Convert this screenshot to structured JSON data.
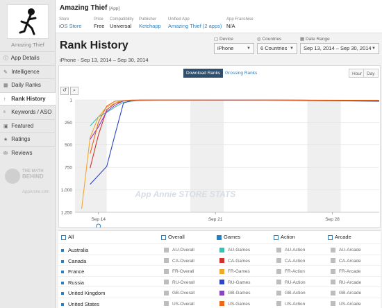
{
  "sidebar": {
    "app_name": "Amazing Thief",
    "items": [
      {
        "label": "App Details",
        "icon": "info-icon"
      },
      {
        "label": "Intelligence",
        "icon": "pencil-icon"
      },
      {
        "label": "Daily Ranks",
        "icon": "calendar-icon"
      },
      {
        "label": "Rank History",
        "icon": "arrow-up-icon"
      },
      {
        "label": "Keywords / ASO",
        "icon": "keyword-icon"
      },
      {
        "label": "Featured",
        "icon": "featured-icon"
      },
      {
        "label": "Ratings",
        "icon": "star-icon"
      },
      {
        "label": "Reviews",
        "icon": "reviews-icon"
      }
    ],
    "active_index": 3
  },
  "header": {
    "title": "Amazing Thief",
    "title_tag": "[App]",
    "meta": [
      {
        "label": "Store",
        "value": "iOS Store",
        "link": true
      },
      {
        "label": "Price",
        "value": "Free",
        "link": false
      },
      {
        "label": "Compatibility",
        "value": "Universal",
        "link": false
      },
      {
        "label": "Publisher",
        "value": "Ketchapp",
        "link": true
      },
      {
        "label": "Unified App",
        "value": "Amazing Thief (2 apps)",
        "link": true
      },
      {
        "label": "App Franchise",
        "value": "N/A",
        "link": false
      }
    ]
  },
  "page": {
    "title": "Rank History",
    "subtitle": "iPhone - Sep 13, 2014 – Sep 30, 2014"
  },
  "controls": {
    "device": {
      "label": "Device",
      "value": "iPhone"
    },
    "countries": {
      "label": "Countries",
      "value": "6 Countries"
    },
    "date_range": {
      "label": "Date Range",
      "value": "Sep 13, 2014 – Sep 30, 2014"
    }
  },
  "chart_toolbar": {
    "download": "Download Ranks",
    "grossing": "Grossing Ranks",
    "hour": "Hour",
    "day": "Day",
    "reset": "↺",
    "zoom": "⌕"
  },
  "chart_data": {
    "type": "line",
    "ylim": [
      1,
      1200
    ],
    "yticks": [
      {
        "v": 1,
        "label": "1"
      },
      {
        "v": 250,
        "label": "250"
      },
      {
        "v": 500,
        "label": "500"
      },
      {
        "v": 750,
        "label": "750"
      },
      {
        "v": 1000,
        "label": "1,000"
      },
      {
        "v": 1250,
        "label": "1,250"
      }
    ],
    "xticks": [
      {
        "day": 14,
        "label": "Sep 14"
      },
      {
        "day": 21,
        "label": "Sep 21"
      },
      {
        "day": 28,
        "label": "Sep 28"
      }
    ],
    "x_range": [
      12.6,
      30.8
    ],
    "weekend_days": [
      13,
      14,
      20,
      21,
      27,
      28
    ],
    "series": [
      {
        "name": "AU-Games",
        "color": "#3bbfb6",
        "points": [
          [
            13.5,
            290
          ],
          [
            14.0,
            190
          ],
          [
            14.5,
            140
          ],
          [
            15.0,
            80
          ],
          [
            15.5,
            28
          ],
          [
            16.5,
            3
          ],
          [
            18,
            2
          ],
          [
            22,
            3
          ],
          [
            26,
            4
          ],
          [
            30.8,
            12
          ]
        ]
      },
      {
        "name": "CA-Games",
        "color": "#d0312d",
        "points": [
          [
            13.5,
            760
          ],
          [
            14.0,
            390
          ],
          [
            14.5,
            110
          ],
          [
            15.0,
            40
          ],
          [
            15.5,
            10
          ],
          [
            16.5,
            3
          ],
          [
            20,
            2
          ],
          [
            25,
            3
          ],
          [
            30.8,
            10
          ]
        ]
      },
      {
        "name": "FR-Games",
        "color": "#f0a830",
        "points": [
          [
            13.0,
            1210
          ],
          [
            13.5,
            420
          ],
          [
            14.0,
            190
          ],
          [
            14.5,
            80
          ],
          [
            15.2,
            20
          ],
          [
            16.0,
            4
          ],
          [
            20,
            2
          ],
          [
            26,
            3
          ],
          [
            30.8,
            15
          ]
        ]
      },
      {
        "name": "RU-Games",
        "color": "#2b44c8",
        "points": [
          [
            13.5,
            940
          ],
          [
            14.5,
            740
          ],
          [
            15.0,
            380
          ],
          [
            15.5,
            35
          ],
          [
            16.0,
            8
          ],
          [
            18,
            3
          ],
          [
            24,
            4
          ],
          [
            30.8,
            16
          ]
        ]
      },
      {
        "name": "GB-Games",
        "color": "#8c3fc7",
        "points": [
          [
            13.5,
            440
          ],
          [
            14.0,
            300
          ],
          [
            14.5,
            130
          ],
          [
            15.0,
            60
          ],
          [
            15.5,
            12
          ],
          [
            16.5,
            3
          ],
          [
            22,
            2
          ],
          [
            30.8,
            8
          ]
        ]
      },
      {
        "name": "US-Games",
        "color": "#e86a1c",
        "points": [
          [
            13.5,
            600
          ],
          [
            14.0,
            250
          ],
          [
            14.5,
            70
          ],
          [
            15.0,
            15
          ],
          [
            16.0,
            3
          ],
          [
            22,
            2
          ],
          [
            30.8,
            6
          ]
        ]
      }
    ],
    "watermark": "App Annie STORE STATS"
  },
  "legend": {
    "headers": {
      "all": "All",
      "overall": "Overall",
      "games": "Games",
      "action": "Action",
      "arcade": "Arcade"
    },
    "rows": [
      {
        "country": "Australia",
        "overall": "AU-Overall",
        "games": "AU-Games",
        "action": "AU-Action",
        "arcade": "AU-Arcade",
        "games_color": "#3bbfb6"
      },
      {
        "country": "Canada",
        "overall": "CA-Overall",
        "games": "CA-Games",
        "action": "CA-Action",
        "arcade": "CA-Arcade",
        "games_color": "#d0312d"
      },
      {
        "country": "France",
        "overall": "FR-Overall",
        "games": "FR-Games",
        "action": "FR-Action",
        "arcade": "FR-Arcade",
        "games_color": "#f0a830"
      },
      {
        "country": "Russia",
        "overall": "RU-Overall",
        "games": "RU-Games",
        "action": "RU-Action",
        "arcade": "RU-Arcade",
        "games_color": "#2b44c8"
      },
      {
        "country": "United Kingdom",
        "overall": "GB-Overall",
        "games": "GB-Games",
        "action": "GB-Action",
        "arcade": "GB-Arcade",
        "games_color": "#8c3fc7"
      },
      {
        "country": "United States",
        "overall": "US-Overall",
        "games": "US-Games",
        "action": "US-Action",
        "arcade": "US-Arcade",
        "games_color": "#e86a1c"
      }
    ],
    "inactive_color": "#bdbdbd"
  },
  "watermark_side": {
    "line1": "THE MATH",
    "line2": "BEHIND",
    "line3": "AppAnnie.com"
  }
}
